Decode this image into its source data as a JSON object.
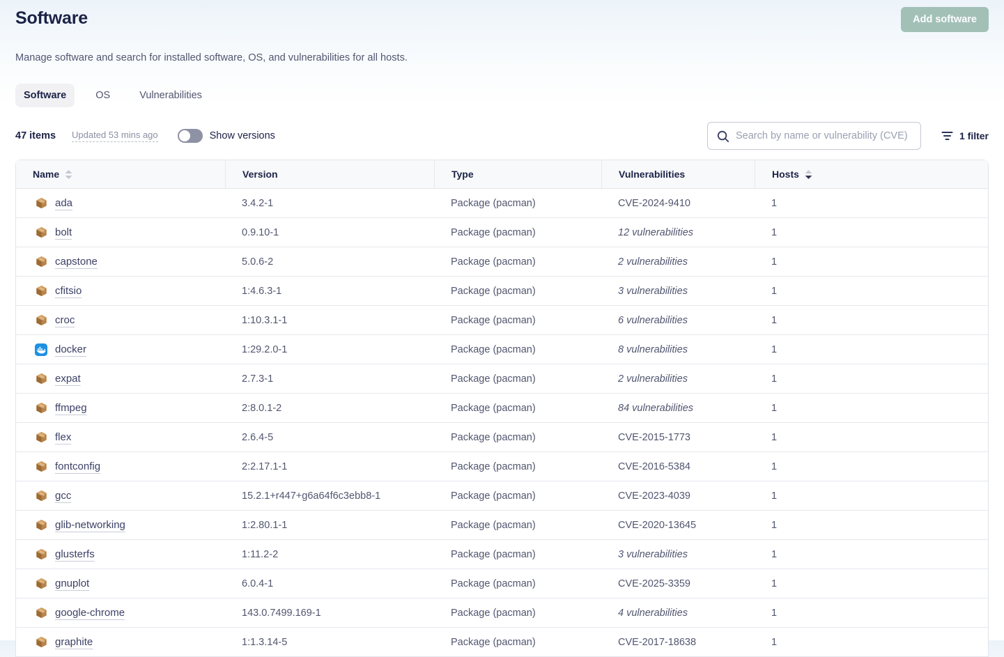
{
  "page": {
    "title": "Software",
    "description": "Manage software and search for installed software, OS, and vulnerabilities for all hosts.",
    "add_button_label": "Add software"
  },
  "tabs": [
    {
      "label": "Software",
      "active": true
    },
    {
      "label": "OS",
      "active": false
    },
    {
      "label": "Vulnerabilities",
      "active": false
    }
  ],
  "controls": {
    "item_count": "47 items",
    "updated": "Updated 53 mins ago",
    "show_versions_label": "Show versions",
    "show_versions_on": false,
    "search_placeholder": "Search by name or vulnerability (CVE)",
    "filter_label": "1 filter"
  },
  "table": {
    "columns": [
      {
        "label": "Name",
        "sort": "none"
      },
      {
        "label": "Version"
      },
      {
        "label": "Type"
      },
      {
        "label": "Vulnerabilities"
      },
      {
        "label": "Hosts",
        "sort": "desc"
      }
    ],
    "rows": [
      {
        "name": "ada",
        "icon": "package",
        "version": "3.4.2-1",
        "type": "Package (pacman)",
        "vulnerabilities": "CVE-2024-9410",
        "vuln_summary": false,
        "hosts": "1"
      },
      {
        "name": "bolt",
        "icon": "package",
        "version": "0.9.10-1",
        "type": "Package (pacman)",
        "vulnerabilities": "12 vulnerabilities",
        "vuln_summary": true,
        "hosts": "1"
      },
      {
        "name": "capstone",
        "icon": "package",
        "version": "5.0.6-2",
        "type": "Package (pacman)",
        "vulnerabilities": "2 vulnerabilities",
        "vuln_summary": true,
        "hosts": "1"
      },
      {
        "name": "cfitsio",
        "icon": "package",
        "version": "1:4.6.3-1",
        "type": "Package (pacman)",
        "vulnerabilities": "3 vulnerabilities",
        "vuln_summary": true,
        "hosts": "1"
      },
      {
        "name": "croc",
        "icon": "package",
        "version": "1:10.3.1-1",
        "type": "Package (pacman)",
        "vulnerabilities": "6 vulnerabilities",
        "vuln_summary": true,
        "hosts": "1"
      },
      {
        "name": "docker",
        "icon": "docker",
        "version": "1:29.2.0-1",
        "type": "Package (pacman)",
        "vulnerabilities": "8 vulnerabilities",
        "vuln_summary": true,
        "hosts": "1"
      },
      {
        "name": "expat",
        "icon": "package",
        "version": "2.7.3-1",
        "type": "Package (pacman)",
        "vulnerabilities": "2 vulnerabilities",
        "vuln_summary": true,
        "hosts": "1"
      },
      {
        "name": "ffmpeg",
        "icon": "package",
        "version": "2:8.0.1-2",
        "type": "Package (pacman)",
        "vulnerabilities": "84 vulnerabilities",
        "vuln_summary": true,
        "hosts": "1"
      },
      {
        "name": "flex",
        "icon": "package",
        "version": "2.6.4-5",
        "type": "Package (pacman)",
        "vulnerabilities": "CVE-2015-1773",
        "vuln_summary": false,
        "hosts": "1"
      },
      {
        "name": "fontconfig",
        "icon": "package",
        "version": "2:2.17.1-1",
        "type": "Package (pacman)",
        "vulnerabilities": "CVE-2016-5384",
        "vuln_summary": false,
        "hosts": "1"
      },
      {
        "name": "gcc",
        "icon": "package",
        "version": "15.2.1+r447+g6a64f6c3ebb8-1",
        "type": "Package (pacman)",
        "vulnerabilities": "CVE-2023-4039",
        "vuln_summary": false,
        "hosts": "1"
      },
      {
        "name": "glib-networking",
        "icon": "package",
        "version": "1:2.80.1-1",
        "type": "Package (pacman)",
        "vulnerabilities": "CVE-2020-13645",
        "vuln_summary": false,
        "hosts": "1"
      },
      {
        "name": "glusterfs",
        "icon": "package",
        "version": "1:11.2-2",
        "type": "Package (pacman)",
        "vulnerabilities": "3 vulnerabilities",
        "vuln_summary": true,
        "hosts": "1"
      },
      {
        "name": "gnuplot",
        "icon": "package",
        "version": "6.0.4-1",
        "type": "Package (pacman)",
        "vulnerabilities": "CVE-2025-3359",
        "vuln_summary": false,
        "hosts": "1"
      },
      {
        "name": "google-chrome",
        "icon": "package",
        "version": "143.0.7499.169-1",
        "type": "Package (pacman)",
        "vulnerabilities": "4 vulnerabilities",
        "vuln_summary": true,
        "hosts": "1"
      },
      {
        "name": "graphite",
        "icon": "package",
        "version": "1:1.3.14-5",
        "type": "Package (pacman)",
        "vulnerabilities": "CVE-2017-18638",
        "vuln_summary": false,
        "hosts": "1"
      }
    ]
  },
  "colors": {
    "add_button": "#a3c0b7",
    "title_text": "#1b2246",
    "body_text": "#51566f",
    "muted_text": "#8b90a3",
    "link_text": "#3c4166",
    "border": "#e2e4ea",
    "docker_blue": "#1d90e4",
    "package_brown": "#b8834a",
    "toggle_off": "#8d92a5",
    "header_gradient_top": "#ecf3f9"
  }
}
